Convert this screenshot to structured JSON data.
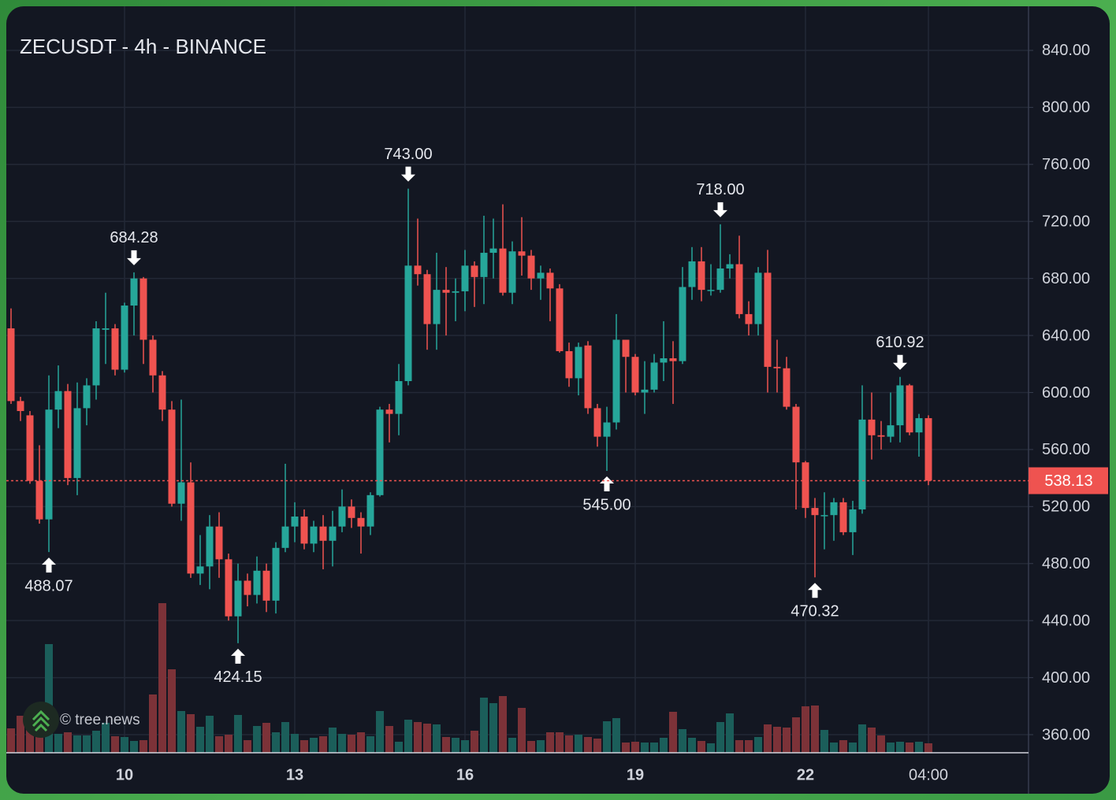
{
  "chart_data": {
    "type": "candlestick",
    "title": "ZECUSDT - 4h - BINANCE",
    "watermark": "© tree.news",
    "categories": [
      null,
      null,
      null,
      null,
      null,
      null,
      null,
      null,
      null,
      null,
      null,
      null,
      "10",
      null,
      null,
      null,
      null,
      null,
      null,
      null,
      null,
      null,
      null,
      null,
      null,
      null,
      null,
      null,
      null,
      null,
      "13",
      null,
      null,
      null,
      null,
      null,
      null,
      null,
      null,
      null,
      null,
      null,
      null,
      null,
      null,
      null,
      null,
      null,
      "16",
      null,
      null,
      null,
      null,
      null,
      null,
      null,
      null,
      null,
      null,
      null,
      null,
      null,
      null,
      null,
      null,
      null,
      "19",
      null,
      null,
      null,
      null,
      null,
      null,
      null,
      null,
      null,
      null,
      null,
      null,
      null,
      null,
      null,
      null,
      null,
      "22",
      null,
      null,
      null,
      null,
      null,
      null,
      null,
      null,
      null,
      null,
      null,
      null,
      "04:00"
    ],
    "open": [
      645,
      594,
      584,
      538,
      511,
      588,
      601,
      540,
      589,
      605,
      644,
      645,
      616,
      661,
      680,
      637,
      612,
      588,
      522,
      537,
      473,
      478,
      506,
      483,
      443,
      468,
      458,
      475,
      454,
      491,
      506,
      513,
      494,
      506,
      496,
      506,
      520,
      512,
      506,
      528,
      588,
      585,
      608,
      689,
      683,
      648,
      672,
      670,
      671,
      689,
      681,
      698,
      701,
      670,
      699,
      696,
      680,
      684,
      673,
      629,
      610,
      633,
      589,
      569,
      579,
      637,
      625,
      600,
      602,
      621,
      624,
      622,
      674,
      692,
      672,
      672,
      687,
      690,
      655,
      648,
      684,
      618,
      617,
      590,
      551,
      519,
      514,
      514,
      523,
      502,
      518,
      581,
      570,
      569,
      577,
      605,
      572,
      582
    ],
    "high": [
      659,
      597,
      587,
      563,
      612,
      619,
      606,
      607,
      610,
      650,
      670,
      648,
      663,
      684.28,
      681,
      640,
      615,
      594,
      595,
      551,
      500,
      514,
      516,
      487,
      480,
      473,
      485,
      480,
      495,
      550,
      523,
      518,
      510,
      514,
      517,
      532,
      525,
      516,
      530,
      590,
      592,
      620,
      743,
      722,
      686,
      698,
      688,
      680,
      700,
      692,
      724,
      722,
      732,
      706,
      723,
      700,
      689,
      687,
      676,
      635,
      635,
      636,
      592,
      590,
      655,
      637,
      627,
      622,
      627,
      650,
      636,
      688,
      702,
      702,
      690,
      718,
      697,
      710,
      664,
      688,
      700,
      637,
      625,
      592,
      552,
      526,
      530,
      526,
      526,
      524,
      605,
      600,
      580,
      600,
      610.92,
      606,
      585,
      584
    ],
    "low": [
      592,
      580,
      536,
      508,
      488.07,
      575,
      535,
      528,
      577,
      595,
      620,
      612,
      614,
      640,
      620,
      600,
      580,
      520,
      510,
      470,
      465,
      462,
      470,
      440,
      424.15,
      450,
      452,
      446,
      445,
      488,
      495,
      490,
      488,
      476,
      478,
      502,
      505,
      487,
      500,
      527,
      565,
      570,
      605,
      675,
      630,
      630,
      640,
      650,
      657,
      660,
      662,
      680,
      668,
      662,
      682,
      672,
      665,
      650,
      628,
      604,
      598,
      585,
      562,
      545,
      574,
      600,
      598,
      585,
      600,
      608,
      592,
      620,
      665,
      664,
      668,
      670,
      680,
      652,
      640,
      640,
      600,
      600,
      588,
      518,
      512,
      470.32,
      490,
      496,
      500,
      486,
      515,
      553,
      560,
      565,
      565,
      570,
      555,
      535
    ],
    "close": [
      594,
      587,
      538,
      511,
      588,
      601,
      540,
      589,
      605,
      645,
      645,
      616,
      661,
      680,
      637,
      612,
      588,
      522,
      537,
      473,
      478,
      506,
      483,
      443,
      468,
      458,
      475,
      454,
      491,
      506,
      513,
      494,
      506,
      496,
      506,
      520,
      512,
      506,
      528,
      588,
      585,
      608,
      689,
      683,
      648,
      672,
      670,
      671,
      689,
      681,
      698,
      701,
      670,
      699,
      696,
      680,
      684,
      673,
      629,
      610,
      632,
      589,
      569,
      579,
      637,
      625,
      600,
      602,
      621,
      624,
      622,
      674,
      692,
      672,
      672,
      687,
      690,
      655,
      648,
      684,
      618,
      617,
      590,
      551,
      519,
      514,
      514,
      523,
      502,
      518,
      581,
      570,
      569,
      577,
      605,
      572,
      582,
      538.13
    ],
    "volume": [
      31,
      47,
      36,
      28,
      138,
      24,
      26,
      22,
      22,
      28,
      38,
      21,
      20,
      15,
      16,
      74,
      190,
      106,
      53,
      49,
      33,
      47,
      21,
      23,
      48,
      16,
      34,
      38,
      26,
      39,
      24,
      16,
      19,
      21,
      32,
      24,
      23,
      26,
      21,
      53,
      34,
      14,
      42,
      39,
      37,
      36,
      20,
      19,
      16,
      28,
      70,
      63,
      72,
      19,
      57,
      15,
      16,
      26,
      26,
      22,
      23,
      20,
      18,
      40,
      44,
      13,
      14,
      13,
      13,
      19,
      52,
      30,
      19,
      15,
      12,
      39,
      50,
      16,
      16,
      20,
      36,
      33,
      32,
      45,
      59,
      60,
      29,
      13,
      16,
      13,
      36,
      32,
      22,
      13,
      14,
      13,
      14,
      12
    ],
    "high_labels": [
      {
        "at": 13,
        "label": "684.28"
      },
      {
        "at": 42,
        "label": "743.00"
      },
      {
        "at": 75,
        "label": "718.00"
      },
      {
        "at": 94,
        "label": "610.92"
      }
    ],
    "low_labels": [
      {
        "at": 4,
        "label": "488.07"
      },
      {
        "at": 24,
        "label": "424.15"
      },
      {
        "at": 63,
        "label": "545.00"
      },
      {
        "at": 85,
        "label": "470.32"
      }
    ],
    "last_label": "538.13",
    "up_color": "#26a69a",
    "down_color": "#ef5350",
    "volume_up_color": "#1b5e5a",
    "volume_down_color": "#7c3238",
    "ylim": [
      347.3,
      869.8
    ],
    "vlim": [
      0,
      250
    ],
    "yticks": [
      {
        "value": 360,
        "label": "360.00"
      },
      {
        "value": 400,
        "label": "400.00"
      },
      {
        "value": 440,
        "label": "440.00"
      },
      {
        "value": 480,
        "label": "480.00"
      },
      {
        "value": 520,
        "label": "520.00"
      },
      {
        "value": 560,
        "label": "560.00"
      },
      {
        "value": 600,
        "label": "600.00"
      },
      {
        "value": 640,
        "label": "640.00"
      },
      {
        "value": 680,
        "label": "680.00"
      },
      {
        "value": 720,
        "label": "720.00"
      },
      {
        "value": 760,
        "label": "760.00"
      },
      {
        "value": 800,
        "label": "800.00"
      },
      {
        "value": 840,
        "label": "840.00"
      }
    ],
    "grid": true
  }
}
